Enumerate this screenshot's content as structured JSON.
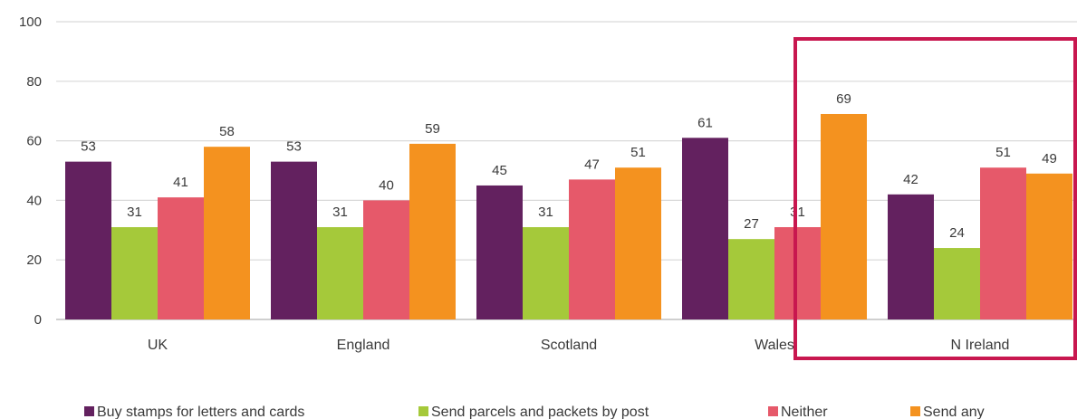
{
  "chart_data": {
    "type": "bar",
    "categories": [
      "UK",
      "England",
      "Scotland",
      "Wales",
      "N Ireland"
    ],
    "series": [
      {
        "name": "Buy stamps for letters and cards",
        "color": "#63215f",
        "values": [
          53,
          53,
          45,
          61,
          42
        ]
      },
      {
        "name": "Send parcels and packets by post",
        "color": "#a5c93a",
        "values": [
          31,
          31,
          31,
          27,
          24
        ]
      },
      {
        "name": "Neither",
        "color": "#e6596a",
        "values": [
          41,
          40,
          47,
          31,
          51
        ]
      },
      {
        "name": "Send any",
        "color": "#f4921f",
        "values": [
          58,
          59,
          51,
          69,
          49
        ]
      }
    ],
    "yticks": [
      "0",
      "20",
      "40",
      "60",
      "80",
      "100"
    ],
    "ylim": [
      0,
      100
    ],
    "grid": true,
    "legend_position": "bottom",
    "highlight": {
      "category": "N Ireland",
      "color": "#c8174f"
    },
    "gridline_color": "#d9d9d9",
    "axis_line_color": "#bfbfbf"
  }
}
